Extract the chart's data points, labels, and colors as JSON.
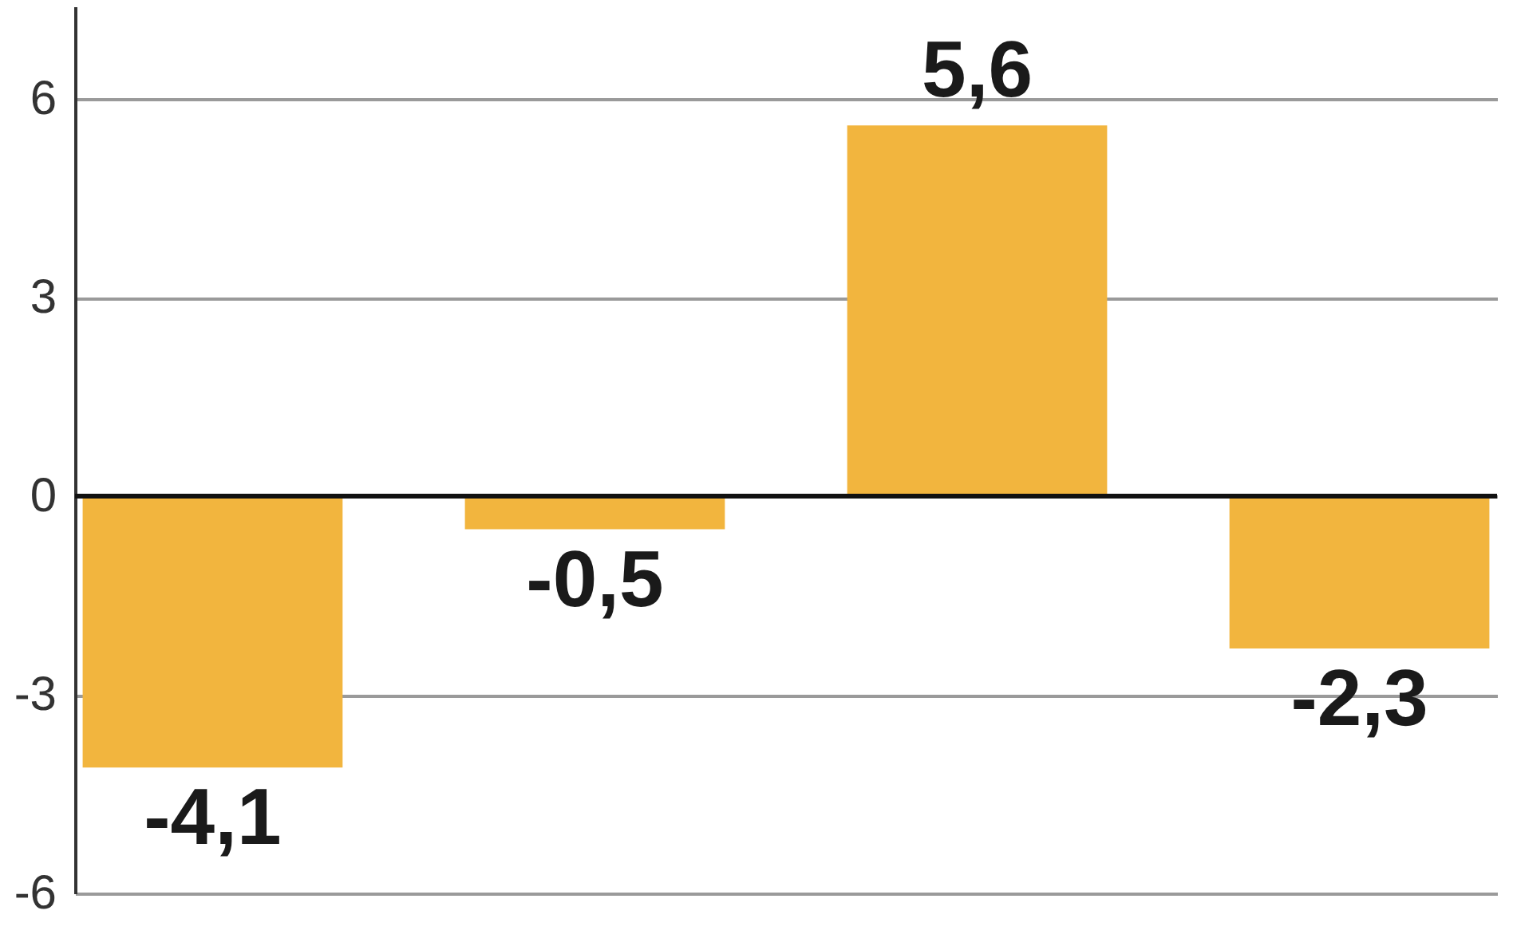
{
  "chart_data": {
    "type": "bar",
    "categories": [
      null,
      null,
      null,
      null
    ],
    "values": [
      -4.1,
      -0.5,
      5.6,
      -2.3
    ],
    "value_labels": [
      "-4,1",
      "-0,5",
      "5,6",
      "-2,3"
    ],
    "color": "#f2b53e",
    "ylim": [
      -6,
      7.4
    ],
    "yticks": [
      -6,
      -3,
      0,
      3,
      6
    ],
    "grid": "y",
    "tick_labels": "y",
    "ref_lines": [
      {
        "axis": "y",
        "value": 0,
        "color": "#111111"
      }
    ]
  }
}
